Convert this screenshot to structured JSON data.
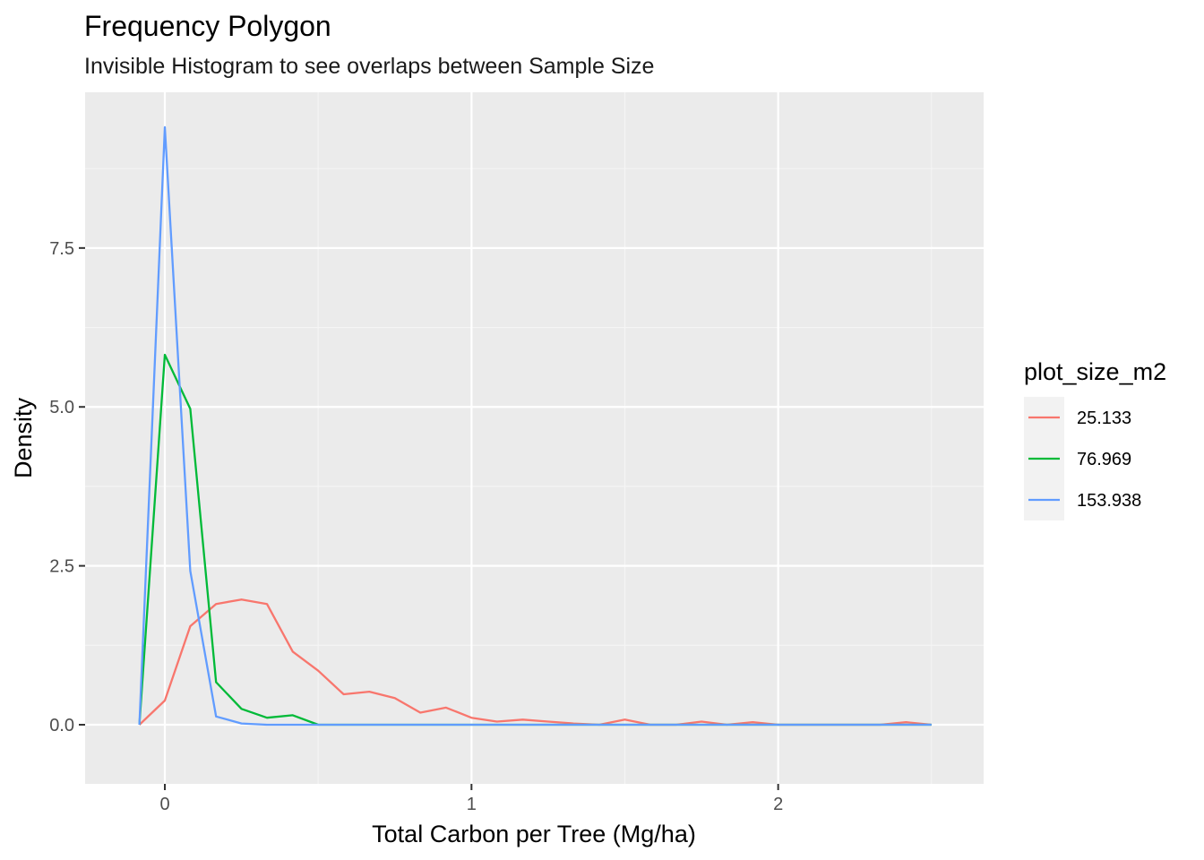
{
  "chart_data": {
    "type": "line",
    "title": "Frequency Polygon",
    "subtitle": "Invisible Histogram to see overlaps between Sample Size",
    "xlabel": "Total Carbon per Tree (Mg/ha)",
    "ylabel": "Density",
    "xlim": [
      -0.26,
      2.67
    ],
    "ylim": [
      -0.93,
      9.95
    ],
    "x_ticks": [
      0,
      1,
      2
    ],
    "x_tick_labels": [
      "0",
      "1",
      "2"
    ],
    "y_ticks": [
      0.0,
      2.5,
      5.0,
      7.5
    ],
    "y_tick_labels": [
      "0.0",
      "2.5",
      "5.0",
      "7.5"
    ],
    "grid": true,
    "legend": {
      "title": "plot_size_m2",
      "position": "right"
    },
    "x": [
      -0.083,
      0.0,
      0.083,
      0.167,
      0.25,
      0.333,
      0.417,
      0.5,
      0.583,
      0.667,
      0.75,
      0.833,
      0.917,
      1.0,
      1.083,
      1.167,
      1.25,
      1.333,
      1.417,
      1.5,
      1.583,
      1.667,
      1.75,
      1.833,
      1.917,
      2.0,
      2.083,
      2.167,
      2.25,
      2.333,
      2.417,
      2.5
    ],
    "series": [
      {
        "name": "25.133",
        "color": "#F8766D",
        "values": [
          0.0,
          0.38,
          1.55,
          1.9,
          1.97,
          1.9,
          1.15,
          0.85,
          0.48,
          0.52,
          0.42,
          0.19,
          0.27,
          0.11,
          0.05,
          0.08,
          0.05,
          0.02,
          0.0,
          0.08,
          0.0,
          0.0,
          0.05,
          0.0,
          0.04,
          0.0,
          0.0,
          0.0,
          0.0,
          0.0,
          0.04,
          0.0
        ]
      },
      {
        "name": "76.969",
        "color": "#00BA38",
        "values": [
          0.0,
          5.82,
          4.97,
          0.67,
          0.25,
          0.11,
          0.15,
          0.0,
          0.0,
          0.0,
          0.0,
          0.0,
          0.0,
          0.0,
          0.0,
          0.0,
          0.0,
          0.0,
          0.0,
          0.0,
          0.0,
          0.0,
          0.0,
          0.0,
          0.0,
          0.0,
          0.0,
          0.0,
          0.0,
          0.0,
          0.0,
          0.0
        ]
      },
      {
        "name": "153.938",
        "color": "#619CFF",
        "values": [
          0.0,
          9.4,
          2.42,
          0.13,
          0.02,
          0.0,
          0.0,
          0.0,
          0.0,
          0.0,
          0.0,
          0.0,
          0.0,
          0.0,
          0.0,
          0.0,
          0.0,
          0.0,
          0.0,
          0.0,
          0.0,
          0.0,
          0.0,
          0.0,
          0.0,
          0.0,
          0.0,
          0.0,
          0.0,
          0.0,
          0.0,
          0.0
        ]
      }
    ]
  },
  "colors": {
    "panel_background": "#EBEBEB",
    "grid_major": "#FFFFFF",
    "grid_minor": "#F5F5F5",
    "tick_label": "#4D4D4D",
    "legend_key_background": "#F2F2F2"
  }
}
